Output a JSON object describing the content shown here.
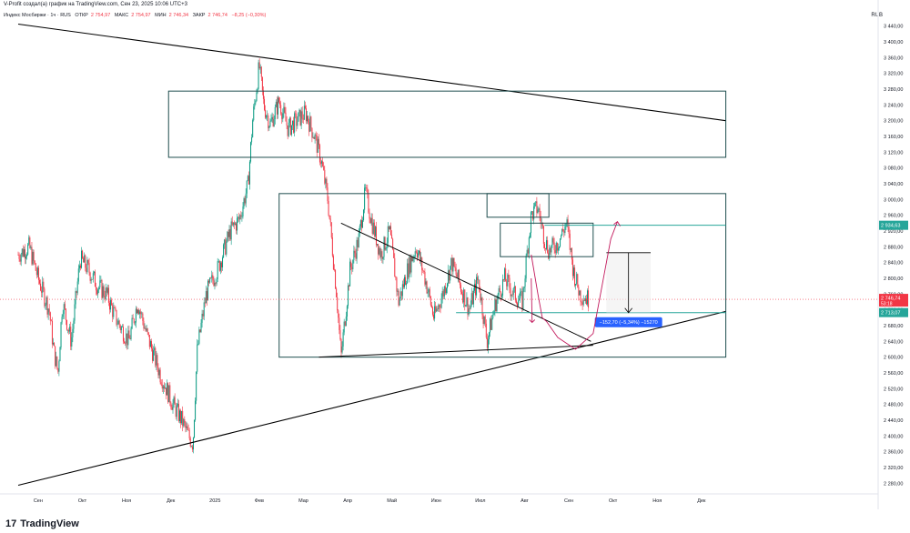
{
  "header": {
    "title": "V-Profit создал(а) график на TradingView.com, Сен 23, 2025 10:06 UTC+3",
    "symbol": "Индекс Мосбиржи · 1ч · RUS",
    "open_label": "ОТКР",
    "open_value": "2 754,97",
    "high_label": "МАКС",
    "high_value": "2 754,97",
    "low_label": "МИН",
    "low_value": "2 746,34",
    "close_label": "ЗАКР",
    "close_value": "2 746,74",
    "change": "−8,25 (−0,30%)",
    "currency": "RUB"
  },
  "brand": {
    "logo": "17",
    "name": "TradingView"
  },
  "colors": {
    "up": "#089981",
    "down": "#f23645",
    "box": "#1f4e4f",
    "line": "#000000",
    "arrow": "#c2185b",
    "measure": "#2962ff",
    "level": "#26a69a"
  },
  "chart_data": {
    "type": "candlestick",
    "ylim": [
      2260,
      3460
    ],
    "y_ticks": [
      "3 440,00",
      "3 400,00",
      "3 360,00",
      "3 320,00",
      "3 280,00",
      "3 240,00",
      "3 200,00",
      "3 160,00",
      "3 120,00",
      "3 080,00",
      "3 040,00",
      "3 000,00",
      "2 960,00",
      "2 920,00",
      "2 880,00",
      "2 840,00",
      "2 800,00",
      "2 760,00",
      "2 720,00",
      "2 680,00",
      "2 640,00",
      "2 600,00",
      "2 560,00",
      "2 520,00",
      "2 480,00",
      "2 440,00",
      "2 400,00",
      "2 360,00",
      "2 320,00",
      "2 280,00"
    ],
    "x_ticks": [
      "Сен",
      "Окт",
      "Ноя",
      "Дек",
      "2025",
      "Фев",
      "Мар",
      "Апр",
      "Май",
      "Июн",
      "Июл",
      "Авг",
      "Сен",
      "Окт",
      "Ноя",
      "Дек"
    ],
    "x_span_months": [
      0,
      16
    ],
    "price_path": [
      [
        0.0,
        2860
      ],
      [
        0.25,
        2880
      ],
      [
        0.45,
        2800
      ],
      [
        0.7,
        2720
      ],
      [
        0.8,
        2620
      ],
      [
        0.9,
        2560
      ],
      [
        1.0,
        2740
      ],
      [
        1.2,
        2640
      ],
      [
        1.4,
        2850
      ],
      [
        1.6,
        2820
      ],
      [
        1.8,
        2780
      ],
      [
        2.0,
        2760
      ],
      [
        2.2,
        2700
      ],
      [
        2.5,
        2640
      ],
      [
        2.7,
        2740
      ],
      [
        2.9,
        2660
      ],
      [
        3.2,
        2560
      ],
      [
        3.5,
        2480
      ],
      [
        3.7,
        2440
      ],
      [
        3.85,
        2400
      ],
      [
        3.95,
        2380
      ],
      [
        4.05,
        2620
      ],
      [
        4.25,
        2760
      ],
      [
        4.5,
        2820
      ],
      [
        4.8,
        2920
      ],
      [
        5.0,
        2950
      ],
      [
        5.2,
        3040
      ],
      [
        5.3,
        3200
      ],
      [
        5.45,
        3340
      ],
      [
        5.55,
        3240
      ],
      [
        5.7,
        3190
      ],
      [
        5.9,
        3250
      ],
      [
        6.1,
        3180
      ],
      [
        6.3,
        3200
      ],
      [
        6.5,
        3220
      ],
      [
        6.7,
        3160
      ],
      [
        6.85,
        3100
      ],
      [
        7.0,
        3000
      ],
      [
        7.2,
        2760
      ],
      [
        7.3,
        2600
      ],
      [
        7.5,
        2820
      ],
      [
        7.7,
        2900
      ],
      [
        7.85,
        3020
      ],
      [
        8.0,
        2940
      ],
      [
        8.2,
        2860
      ],
      [
        8.4,
        2920
      ],
      [
        8.6,
        2740
      ],
      [
        8.8,
        2820
      ],
      [
        9.0,
        2880
      ],
      [
        9.2,
        2800
      ],
      [
        9.4,
        2700
      ],
      [
        9.6,
        2760
      ],
      [
        9.8,
        2840
      ],
      [
        10.0,
        2780
      ],
      [
        10.2,
        2720
      ],
      [
        10.4,
        2800
      ],
      [
        10.6,
        2640
      ],
      [
        10.8,
        2740
      ],
      [
        11.0,
        2800
      ],
      [
        11.2,
        2760
      ],
      [
        11.4,
        2740
      ],
      [
        11.5,
        2860
      ],
      [
        11.6,
        2960
      ],
      [
        11.75,
        2980
      ],
      [
        11.9,
        2900
      ],
      [
        12.0,
        2870
      ],
      [
        12.2,
        2890
      ],
      [
        12.4,
        2940
      ],
      [
        12.55,
        2820
      ],
      [
        12.7,
        2760
      ],
      [
        12.9,
        2747
      ]
    ],
    "last_price": "2 746,74",
    "last_price_countdown": "53:18",
    "level_labels": [
      "2 934,63",
      "2 713,07"
    ],
    "measure_label": "−152,70 (−5,34%) −15270",
    "drawings": {
      "descending_trendline": [
        [
          0.0,
          3445
        ],
        [
          16.0,
          3200
        ]
      ],
      "ascending_trendline": [
        [
          0.0,
          2275
        ],
        [
          16.0,
          2716
        ]
      ],
      "upper_box": [
        [
          3.4,
          3275
        ],
        [
          16.0,
          3107
        ]
      ],
      "main_box": [
        [
          5.9,
          3015
        ],
        [
          16.0,
          2600
        ]
      ],
      "small_box_1": [
        [
          10.6,
          3015
        ],
        [
          12.0,
          2955
        ]
      ],
      "small_box_2": [
        [
          10.9,
          2940
        ],
        [
          13.0,
          2855
        ]
      ],
      "inner_wedge_upper": [
        [
          7.3,
          2940
        ],
        [
          12.95,
          2640
        ]
      ],
      "inner_wedge_lower": [
        [
          6.8,
          2600
        ],
        [
          13.0,
          2630
        ]
      ],
      "level_high": [
        [
          11.9,
          2934.63
        ],
        [
          16.0,
          2934.63
        ]
      ],
      "level_low": [
        [
          9.9,
          2713
        ],
        [
          16.0,
          2713
        ]
      ],
      "measure_box": [
        [
          13.3,
          2865
        ],
        [
          14.3,
          2713
        ]
      ],
      "projection_path": [
        [
          11.6,
          2860
        ],
        [
          11.75,
          2760
        ],
        [
          11.85,
          2700
        ],
        [
          11.95,
          2690
        ],
        [
          12.2,
          2650
        ],
        [
          12.6,
          2620
        ],
        [
          13.0,
          2660
        ],
        [
          13.2,
          2780
        ],
        [
          13.4,
          2900
        ],
        [
          13.55,
          2944
        ]
      ]
    }
  }
}
